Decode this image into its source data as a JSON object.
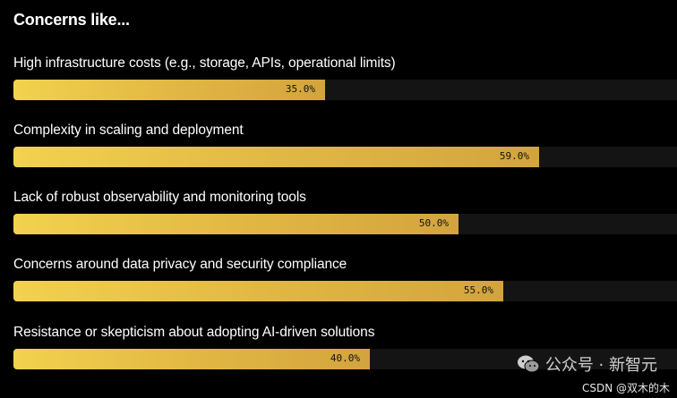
{
  "chart_data": {
    "type": "bar",
    "orientation": "horizontal",
    "title": "Concerns like...",
    "categories": [
      "High infrastructure costs (e.g., storage, APIs, operational limits)",
      "Complexity in scaling and deployment",
      "Lack of robust observability and monitoring tools",
      "Concerns around data privacy and security compliance",
      "Resistance or skepticism about adopting AI-driven solutions"
    ],
    "values": [
      35.0,
      59.0,
      50.0,
      55.0,
      40.0
    ],
    "value_labels": [
      "35.0%",
      "59.0%",
      "50.0%",
      "55.0%",
      "40.0%"
    ],
    "xlim": [
      0,
      74.5
    ],
    "unit": "%",
    "bar_color": "#e3b945"
  },
  "watermark": {
    "text": "公众号 · 新智元",
    "icon": "wechat-icon"
  },
  "credit": "CSDN @双木的木"
}
